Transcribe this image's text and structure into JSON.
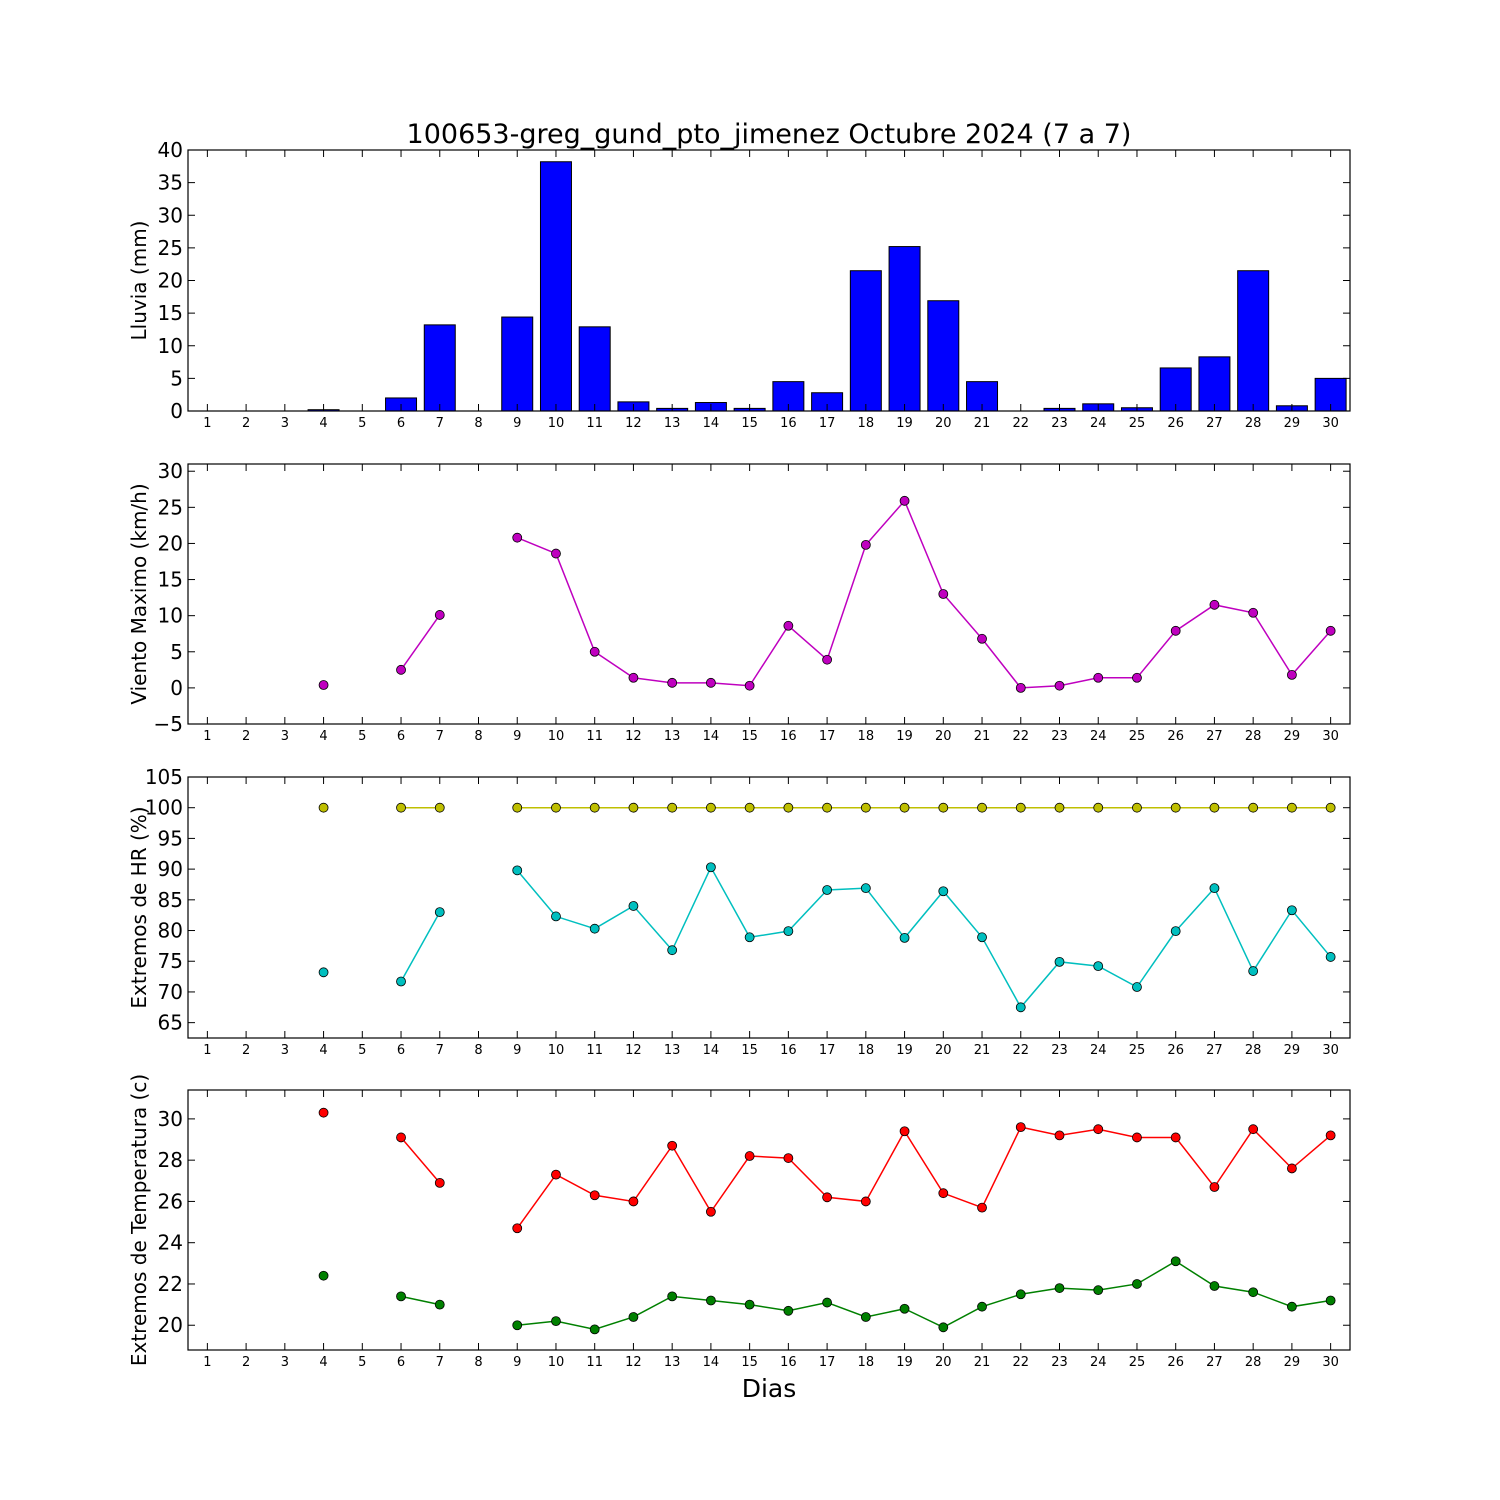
{
  "title": "100653-greg_gund_pto_jimenez Octubre 2024  (7 a 7)",
  "xlabel": "Dias",
  "colors": {
    "rain": "#0000ff",
    "wind": "#bf00bf",
    "hr_max": "#bfbf00",
    "hr_min": "#00bfbf",
    "temp_max": "#ff0000",
    "temp_min": "#008000"
  },
  "chart_data": [
    {
      "type": "bar",
      "ylabel": "Lluvia (mm)",
      "ylim": [
        0,
        40
      ],
      "yticks": [
        0,
        5,
        10,
        15,
        20,
        25,
        30,
        35,
        40
      ],
      "categories": [
        "1",
        "2",
        "3",
        "4",
        "5",
        "6",
        "7",
        "8",
        "9",
        "10",
        "11",
        "12",
        "13",
        "14",
        "15",
        "16",
        "17",
        "18",
        "19",
        "20",
        "21",
        "22",
        "23",
        "24",
        "25",
        "26",
        "27",
        "28",
        "29",
        "30"
      ],
      "series": [
        {
          "values": [
            0,
            0,
            0,
            0.2,
            0,
            2.0,
            13.2,
            0,
            14.4,
            38.2,
            12.9,
            1.4,
            0.4,
            1.3,
            0.4,
            4.5,
            2.8,
            21.5,
            25.2,
            16.9,
            4.5,
            0,
            0.4,
            1.1,
            0.5,
            6.6,
            8.3,
            21.5,
            0.8,
            5.0
          ]
        }
      ]
    },
    {
      "type": "line",
      "ylabel": "Viento Maximo (km/h)",
      "ylim": [
        -5,
        31
      ],
      "yticks": [
        -5,
        0,
        5,
        10,
        15,
        20,
        25,
        30
      ],
      "x": [
        1,
        2,
        3,
        4,
        5,
        6,
        7,
        8,
        9,
        10,
        11,
        12,
        13,
        14,
        15,
        16,
        17,
        18,
        19,
        20,
        21,
        22,
        23,
        24,
        25,
        26,
        27,
        28,
        29,
        30
      ],
      "series": [
        {
          "values": [
            null,
            null,
            null,
            0.4,
            null,
            2.5,
            10.1,
            null,
            20.8,
            18.6,
            5.0,
            1.4,
            0.7,
            0.7,
            0.3,
            8.6,
            3.9,
            19.8,
            25.9,
            13.0,
            6.8,
            0.0,
            0.3,
            1.4,
            1.4,
            7.9,
            11.5,
            10.4,
            1.8,
            7.9
          ]
        }
      ]
    },
    {
      "type": "line",
      "ylabel": "Extremos de HR (%)",
      "ylim": [
        62.5,
        105
      ],
      "yticks": [
        65,
        70,
        75,
        80,
        85,
        90,
        95,
        100,
        105
      ],
      "x": [
        1,
        2,
        3,
        4,
        5,
        6,
        7,
        8,
        9,
        10,
        11,
        12,
        13,
        14,
        15,
        16,
        17,
        18,
        19,
        20,
        21,
        22,
        23,
        24,
        25,
        26,
        27,
        28,
        29,
        30
      ],
      "series": [
        {
          "values": [
            null,
            null,
            null,
            100,
            null,
            100,
            100,
            null,
            100,
            100,
            100,
            100,
            100,
            100,
            100,
            100,
            100,
            100,
            100,
            100,
            100,
            100,
            100,
            100,
            100,
            100,
            100,
            100,
            100,
            100
          ]
        },
        {
          "values": [
            null,
            null,
            null,
            73.2,
            null,
            71.7,
            83.0,
            null,
            89.8,
            82.3,
            80.3,
            84.0,
            76.8,
            90.3,
            78.9,
            79.9,
            86.6,
            86.9,
            78.8,
            86.4,
            78.9,
            67.5,
            74.9,
            74.2,
            70.8,
            79.9,
            86.9,
            73.4,
            83.3,
            75.7
          ]
        }
      ]
    },
    {
      "type": "line",
      "ylabel": "Extremos de Temperatura (c)",
      "ylim": [
        18.8,
        31.4
      ],
      "yticks": [
        20,
        22,
        24,
        26,
        28,
        30
      ],
      "x": [
        1,
        2,
        3,
        4,
        5,
        6,
        7,
        8,
        9,
        10,
        11,
        12,
        13,
        14,
        15,
        16,
        17,
        18,
        19,
        20,
        21,
        22,
        23,
        24,
        25,
        26,
        27,
        28,
        29,
        30
      ],
      "series": [
        {
          "values": [
            null,
            null,
            null,
            30.3,
            null,
            29.1,
            26.9,
            null,
            24.7,
            27.3,
            26.3,
            26.0,
            28.7,
            25.5,
            28.2,
            28.1,
            26.2,
            26.0,
            29.4,
            26.4,
            25.7,
            29.6,
            29.2,
            29.5,
            29.1,
            29.1,
            26.7,
            29.5,
            27.6,
            29.2
          ]
        },
        {
          "values": [
            null,
            null,
            null,
            22.4,
            null,
            21.4,
            21.0,
            null,
            20.0,
            20.2,
            19.8,
            20.4,
            21.4,
            21.2,
            21.0,
            20.7,
            21.1,
            20.4,
            20.8,
            19.9,
            20.9,
            21.5,
            21.8,
            21.7,
            22.0,
            23.1,
            21.9,
            21.6,
            20.9,
            21.2
          ]
        }
      ]
    }
  ]
}
